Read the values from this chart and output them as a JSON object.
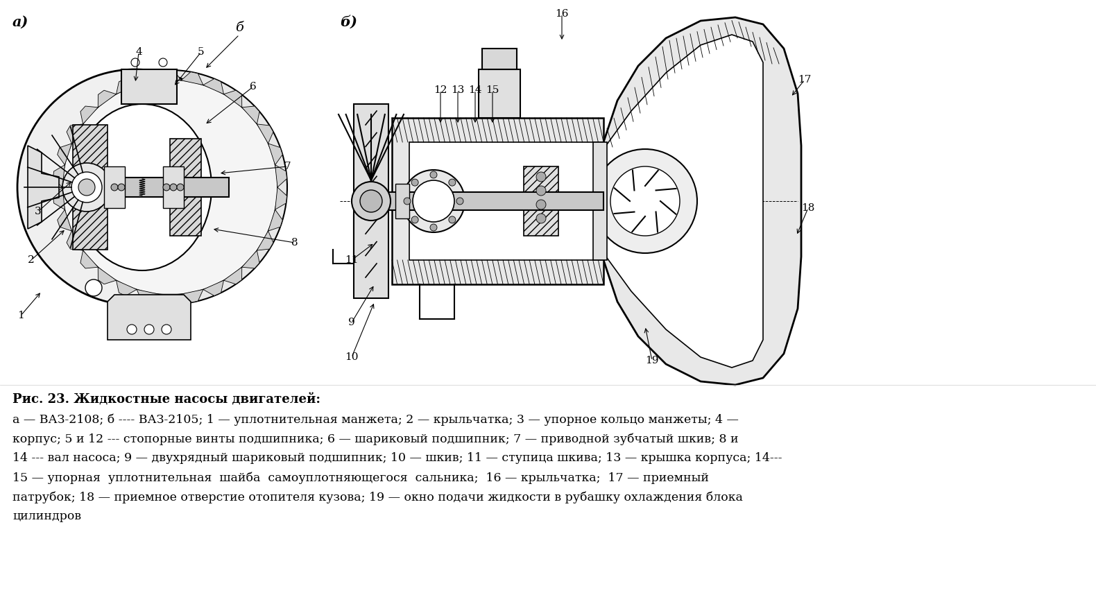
{
  "background_color": "#ffffff",
  "fig_width": 15.8,
  "fig_height": 8.58,
  "dpi": 100,
  "title_bold": "Рис. 23. Жидкостные насосы двигателей:",
  "caption_line1": "а — ВАЗ-2108; б ---- ВАЗ-2105; 1 — уплотнительная манжета; 2 — крыльчатка; 3 — упорное кольцо манжеты; 4 —",
  "caption_line2": "корпус; 5 и 12 --- стопорные винты подшипника; 6 — шариковый подшипник; 7 — приводной зубчатый шкив; 8 и",
  "caption_line3": "14 --- вал насоса; 9 — двухрядный шариковый подшипник; 10 — шкив; 11 — ступица шкива; 13 — крышка корпуса; 14---",
  "caption_line4": "15 — упорная  уплотнительная  шайба  самоуплотняющегося  сальника;  16 — крыльчатка;  17 — приемный",
  "caption_line5": "патрубок; 18 — приемное отверстие отопителя кузова; 19 — окно подачи жидкости в рубашку охлаждения блока",
  "caption_line6": "цилиндров",
  "label_a": "а)",
  "label_b": "б)"
}
